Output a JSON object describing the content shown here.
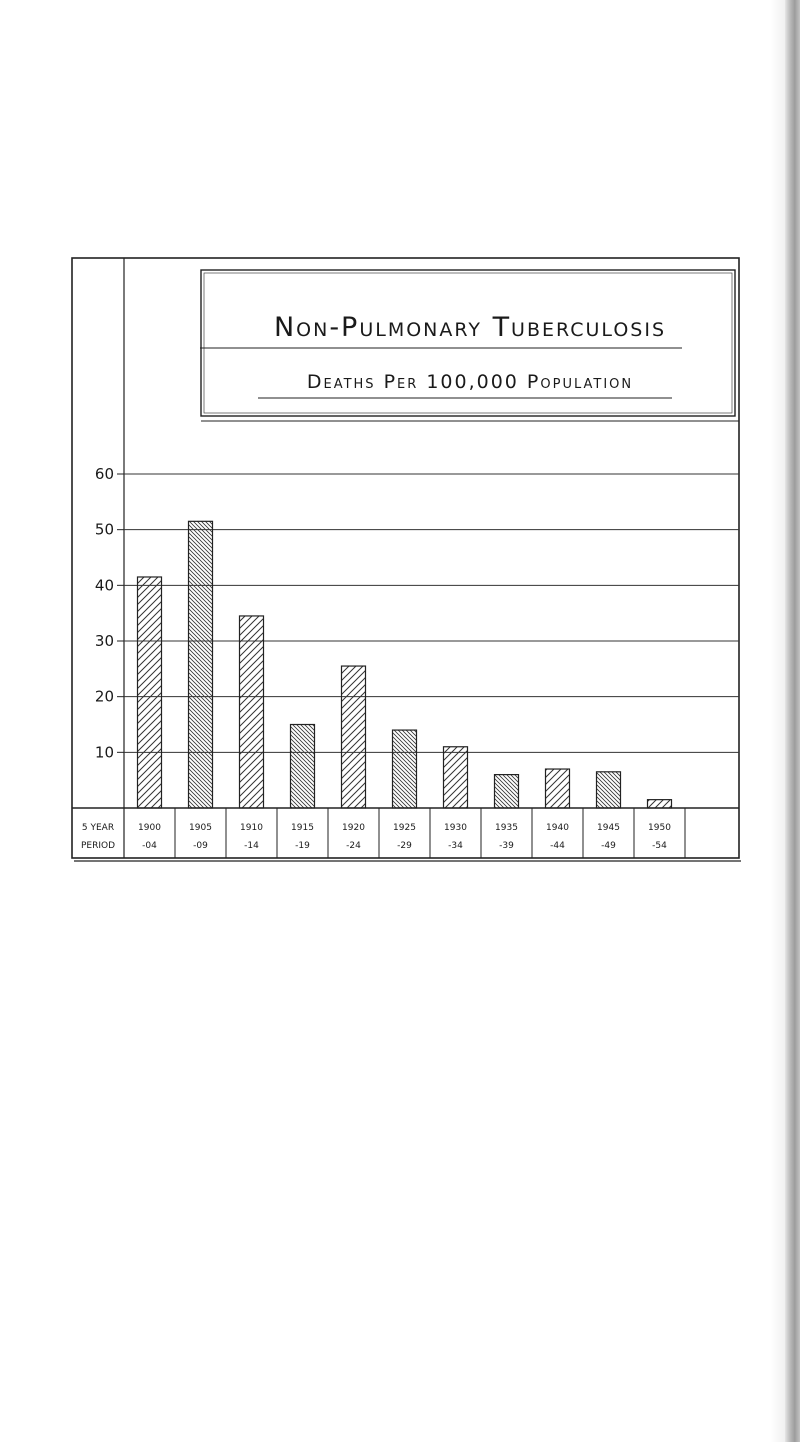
{
  "title": "Non-Pulmonary Tuberculosis",
  "subtitle": "Deaths Per 100,000 Population",
  "chart_data": {
    "type": "bar",
    "title": "Non-Pulmonary Tuberculosis",
    "subtitle": "Deaths Per 100,000 Population",
    "ylim": [
      0,
      60
    ],
    "yticks": [
      "10",
      "20",
      "30",
      "40",
      "50",
      "60"
    ],
    "grid": true,
    "legend": "none",
    "row_header": [
      "5 YEAR",
      "PERIOD"
    ],
    "categories": [
      [
        "1900",
        "-04"
      ],
      [
        "1905",
        "-09"
      ],
      [
        "1910",
        "-14"
      ],
      [
        "1915",
        "-19"
      ],
      [
        "1920",
        "-24"
      ],
      [
        "1925",
        "-29"
      ],
      [
        "1930",
        "-34"
      ],
      [
        "1935",
        "-39"
      ],
      [
        "1940",
        "-44"
      ],
      [
        "1945",
        "-49"
      ],
      [
        "1950",
        "-54"
      ]
    ],
    "values": [
      41.5,
      51.5,
      34.5,
      15,
      25.5,
      14,
      11,
      6,
      7,
      6.5,
      1.5
    ]
  }
}
